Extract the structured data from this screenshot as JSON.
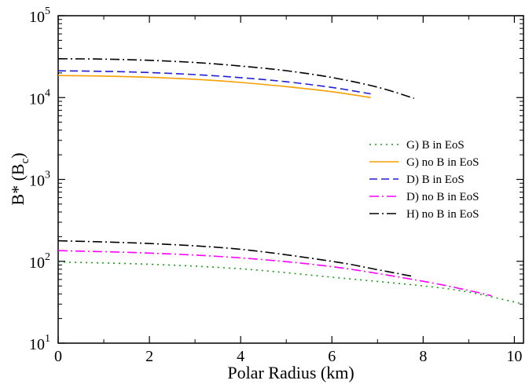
{
  "chart_data": {
    "type": "line",
    "xlabel": "Polar Radius (km)",
    "ylabel": {
      "main": "B* (B",
      "sub": "c",
      "close": ")"
    },
    "xlim": [
      0,
      10.2
    ],
    "ylim": [
      10,
      100000
    ],
    "yscale": "log",
    "x_ticks": [
      {
        "value": 0,
        "label": "0"
      },
      {
        "value": 2,
        "label": "2"
      },
      {
        "value": 4,
        "label": "4"
      },
      {
        "value": 6,
        "label": "6"
      },
      {
        "value": 8,
        "label": "8"
      },
      {
        "value": 10,
        "label": "10"
      }
    ],
    "y_ticks": [
      {
        "value": 10,
        "base": "10",
        "exp": "1"
      },
      {
        "value": 100,
        "base": "10",
        "exp": "2"
      },
      {
        "value": 1000,
        "base": "10",
        "exp": "3"
      },
      {
        "value": 10000,
        "base": "10",
        "exp": "4"
      },
      {
        "value": 100000,
        "base": "10",
        "exp": "5"
      }
    ],
    "grid": false,
    "legend_position": "right",
    "series": [
      {
        "name": "G) B in EoS",
        "color": "#1a9a1a",
        "dash": "dot",
        "x": [
          0,
          2,
          4,
          6,
          8,
          9,
          10.2
        ],
        "y": [
          98,
          92,
          81,
          64,
          50,
          42,
          30
        ]
      },
      {
        "name": "G) no B in EoS",
        "color": "#f5a000",
        "dash": "solid",
        "x": [
          0,
          1,
          2,
          3,
          4,
          5,
          6,
          6.85
        ],
        "y": [
          18600,
          18300,
          17700,
          16700,
          15300,
          13600,
          11800,
          10000
        ]
      },
      {
        "name": "D) B in EoS",
        "color": "#1f1fd6",
        "dash": "dash",
        "x": [
          0,
          1,
          2,
          3,
          4,
          5,
          6,
          6.85
        ],
        "y": [
          21200,
          20900,
          20200,
          19100,
          17500,
          15600,
          13300,
          11100
        ]
      },
      {
        "name": "D) no B in EoS",
        "color": "#ff00ff",
        "dash": "dashdot",
        "x": [
          0,
          2,
          4,
          6,
          8,
          9,
          9.5
        ],
        "y": [
          135,
          126,
          110,
          86,
          57,
          44,
          38
        ]
      },
      {
        "name": "H) no B in EoS",
        "color": "#000000",
        "dash": "dashdot",
        "x": [
          0,
          2,
          4,
          6,
          7,
          7.8
        ],
        "y": [
          178,
          165,
          140,
          100,
          79,
          65
        ]
      },
      {
        "name": "H) no B in EoS",
        "color": "#000000",
        "dash": "dashdot",
        "legend": false,
        "x": [
          0,
          1,
          2,
          3,
          4,
          5,
          6,
          7,
          7.8
        ],
        "y": [
          29800,
          29500,
          28500,
          26800,
          24300,
          21300,
          17600,
          13400,
          9800
        ]
      }
    ]
  }
}
